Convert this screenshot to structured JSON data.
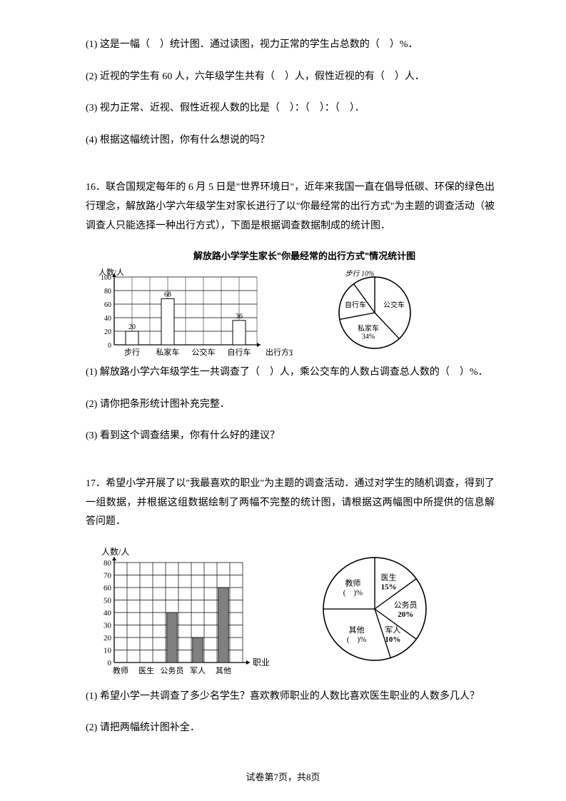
{
  "q15": {
    "l1": "(1) 这是一幅（　）统计图．通过读图，视力正常的学生占总数的（　）%．",
    "l2": "(2) 近视的学生有 60 人，六年级学生共有（　）人，假性近视的有（　）人．",
    "l3": "(3) 视力正常、近视、假性近视人数的比是（　）：（　）：（　）．",
    "l4": "(4) 根据这幅统计图，你有什么想说的吗？"
  },
  "q16": {
    "intro": "16．联合国规定每年的 6 月 5 日是\"世界环境日\"，近年来我国一直在倡导低碳、环保的绿色出行理念，解放路小学六年级学生对家长进行了以\"你最经常的出行方式\"为主题的调查活动（被调查人只能选择一种出行方式），下面是根据调查数据制成的统计图．",
    "chartTitle": "解放路小学学生家长\"你最经常的出行方式\"情况统计图",
    "bar": {
      "yLabel": "人数/人",
      "xLabel": "出行方式",
      "categories": [
        "步行",
        "私家车",
        "公交车",
        "自行车"
      ],
      "yTicks": [
        0,
        20,
        40,
        60,
        80,
        100
      ],
      "values": [
        20,
        68,
        null,
        36
      ],
      "barLabels": [
        "20",
        "68",
        "",
        "36"
      ],
      "barColor": "#000000",
      "gridColor": "#000000"
    },
    "pie": {
      "slices": [
        {
          "label": "公交车",
          "lines": [
            "公交车"
          ],
          "pct": 38,
          "labelPos": "in"
        },
        {
          "label": "私家车34%",
          "lines": [
            "私家车",
            "34%"
          ],
          "pct": 34,
          "labelPos": "in"
        },
        {
          "label": "自行车",
          "lines": [
            "自行车"
          ],
          "pct": 18,
          "labelPos": "in"
        },
        {
          "label": "步行 10%",
          "lines": [
            "步行 10%"
          ],
          "pct": 10,
          "labelPos": "out"
        }
      ],
      "stroke": "#000000",
      "fill": "#ffffff"
    },
    "l1": "(1) 解放路小学六年级学生一共调查了（　）人，乘公交车的人数占调查总人数的（　）%．",
    "l2": "(2) 请你把条形统计图补充完整．",
    "l3": "(3) 看到这个调查结果，你有什么好的建议？"
  },
  "q17": {
    "intro": "17．希望小学开展了以\"我最喜欢的职业\"为主题的调查活动．通过对学生的随机调查，得到了一组数据，并根据这组数据绘制了两幅不完整的统计图，请根据这两幅图中所提供的信息解答问题．",
    "bar": {
      "yLabel": "人数/人",
      "xLabel": "职业",
      "categories": [
        "教师",
        "医生",
        "公务员",
        "军人",
        "其他"
      ],
      "yTicks": [
        0,
        10,
        20,
        30,
        40,
        50,
        60,
        70,
        80
      ],
      "values": [
        null,
        null,
        40,
        20,
        60
      ],
      "barFill": "#808080",
      "gridColor": "#000000"
    },
    "pie": {
      "slices": [
        {
          "lines": [
            "医生",
            "15%"
          ],
          "pct": 15
        },
        {
          "lines": [
            "公务员",
            "20%"
          ],
          "pct": 20
        },
        {
          "lines": [
            "军人",
            "10%"
          ],
          "pct": 10
        },
        {
          "lines": [
            "其他",
            "(　)%"
          ],
          "pct": 30
        },
        {
          "lines": [
            "教师",
            "(　)%"
          ],
          "pct": 25
        }
      ],
      "stroke": "#000000",
      "fill": "#ffffff"
    },
    "l1": "(1) 希望小学一共调查了多少名学生？喜欢教师职业的人数比喜欢医生职业的人数多几人？",
    "l2": "(2) 请把两幅统计图补全．"
  },
  "footer": "试卷第7页，共8页"
}
